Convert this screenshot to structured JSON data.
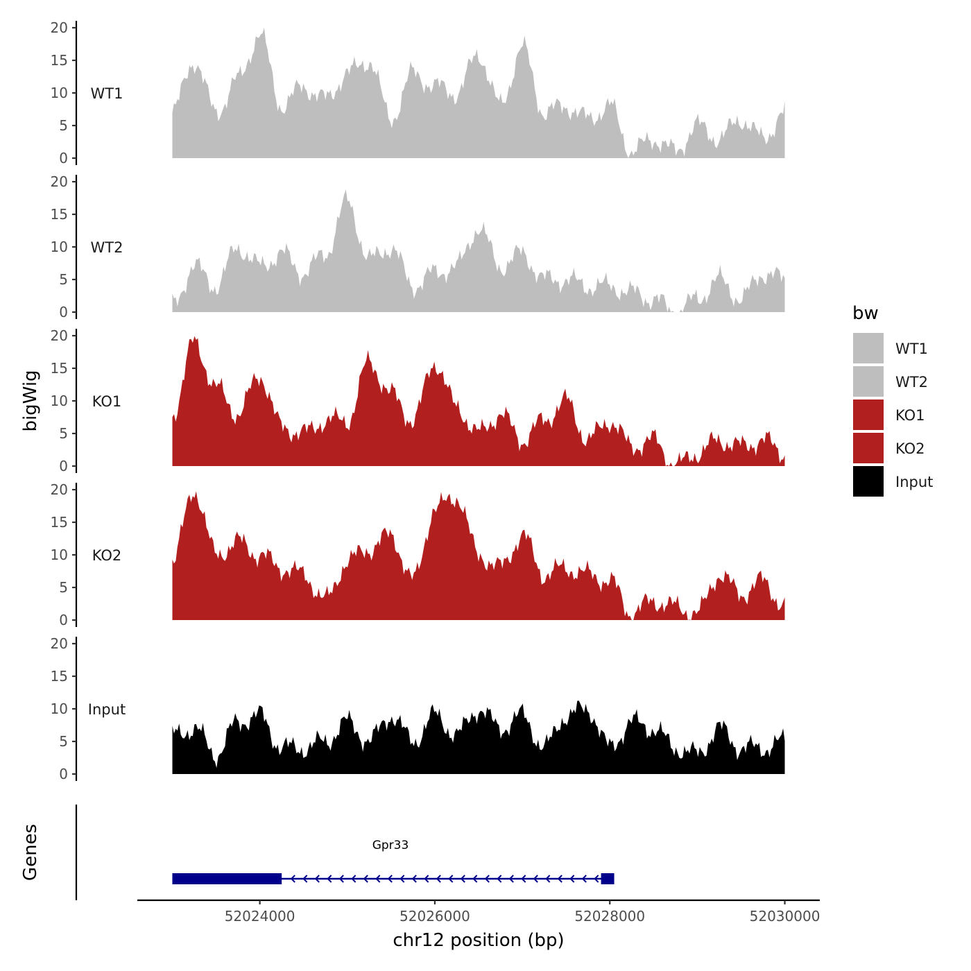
{
  "chart_data": {
    "type": "area",
    "ylabel": "bigWig",
    "xlabel": "chr12 position (bp)",
    "ylim": [
      0,
      20
    ],
    "y_ticks": [
      0,
      5,
      10,
      15,
      20
    ],
    "xlim": [
      52022600,
      52030400
    ],
    "x_ticks": [
      52024000,
      52026000,
      52028000,
      52030000
    ],
    "x_tick_labels": [
      "52024000",
      "52026000",
      "52028000",
      "52030000"
    ],
    "legend": {
      "title": "bw",
      "position": "right",
      "entries": [
        {
          "name": "WT1",
          "color": "#bebebe"
        },
        {
          "name": "WT2",
          "color": "#bebebe"
        },
        {
          "name": "KO1",
          "color": "#b21f1f"
        },
        {
          "name": "KO2",
          "color": "#b21f1f"
        },
        {
          "name": "Input",
          "color": "#000000"
        }
      ]
    },
    "x": [
      52023000,
      52023250,
      52023500,
      52023750,
      52024000,
      52024250,
      52024500,
      52024750,
      52025000,
      52025250,
      52025500,
      52025750,
      52026000,
      52026250,
      52026500,
      52026750,
      52027000,
      52027250,
      52027500,
      52027750,
      52028000,
      52028250,
      52028500,
      52028750,
      52029000,
      52029250,
      52029500,
      52029750,
      52030000
    ],
    "series": [
      {
        "name": "WT1",
        "color": "#bebebe",
        "values": [
          7,
          15,
          7,
          12,
          19,
          8,
          11,
          9,
          13,
          15,
          6,
          13,
          11,
          10,
          16,
          8,
          17,
          7,
          8,
          6,
          8,
          1,
          3,
          1,
          5,
          3,
          6,
          3,
          7
        ]
      },
      {
        "name": "WT2",
        "color": "#bebebe",
        "values": [
          1,
          7,
          4,
          10,
          7,
          9,
          6,
          9,
          17,
          8,
          10,
          4,
          6,
          7,
          13,
          7,
          9,
          5,
          5,
          4,
          4,
          3,
          2,
          0,
          2,
          5,
          2,
          6,
          5
        ]
      },
      {
        "name": "KO1",
        "color": "#b21f1f",
        "values": [
          8,
          19,
          12,
          8,
          14,
          6,
          5,
          7,
          7,
          16,
          11,
          7,
          16,
          9,
          5,
          8,
          4,
          7,
          10,
          4,
          7,
          3,
          4,
          0,
          2,
          4,
          3,
          4,
          2
        ]
      },
      {
        "name": "KO2",
        "color": "#b21f1f",
        "values": [
          9,
          20,
          10,
          12,
          10,
          8,
          7,
          3,
          9,
          11,
          13,
          6,
          17,
          19,
          10,
          8,
          13,
          7,
          8,
          7,
          6,
          1,
          3,
          2,
          1,
          7,
          4,
          6,
          2
        ]
      },
      {
        "name": "Input",
        "color": "#000000",
        "values": [
          6,
          7,
          3,
          8,
          9,
          4,
          4,
          5,
          8,
          5,
          9,
          5,
          9,
          6,
          10,
          7,
          9,
          4,
          9,
          10,
          4,
          8,
          7,
          4,
          3,
          7,
          4,
          4,
          5
        ]
      }
    ],
    "genes_track": {
      "label": "Genes",
      "gene_name": "Gpr33",
      "color": "#00008b",
      "strand": "-",
      "start": 52023000,
      "end": 52028050,
      "exons": [
        [
          52023000,
          52024250
        ],
        [
          52027900,
          52028050
        ]
      ]
    }
  }
}
